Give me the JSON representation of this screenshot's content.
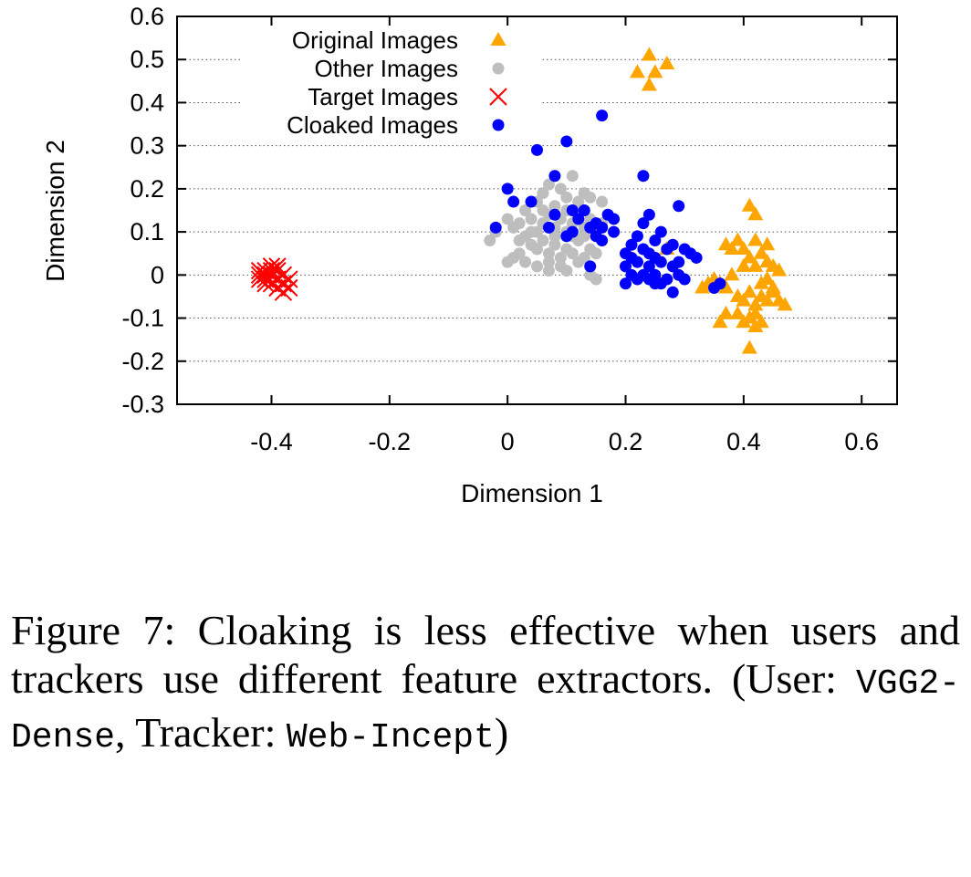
{
  "chart_data": {
    "type": "scatter",
    "xlabel": "Dimension 1",
    "ylabel": "Dimension 2",
    "xlim": [
      -0.56,
      0.66
    ],
    "ylim": [
      -0.3,
      0.6
    ],
    "x_ticks": [
      "-0.4",
      "-0.2",
      "0",
      "0.2",
      "0.4",
      "0.6"
    ],
    "x_tick_values": [
      -0.4,
      -0.2,
      0,
      0.2,
      0.4,
      0.6
    ],
    "y_ticks": [
      "0.6",
      "0.5",
      "0.4",
      "0.3",
      "0.2",
      "0.1",
      "0",
      "-0.1",
      "-0.2",
      "-0.3"
    ],
    "y_tick_values": [
      0.6,
      0.5,
      0.4,
      0.3,
      0.2,
      0.1,
      0,
      -0.1,
      -0.2,
      -0.3
    ],
    "grid": "horizontal dotted",
    "legend_position": "top-left",
    "series": [
      {
        "name": "Original Images",
        "marker": "triangle",
        "color": "#FFA500",
        "points": [
          [
            0.22,
            0.47
          ],
          [
            0.24,
            0.51
          ],
          [
            0.25,
            0.47
          ],
          [
            0.27,
            0.49
          ],
          [
            0.24,
            0.44
          ],
          [
            0.41,
            0.16
          ],
          [
            0.42,
            0.14
          ],
          [
            0.37,
            0.07
          ],
          [
            0.38,
            0.06
          ],
          [
            0.39,
            0.08
          ],
          [
            0.4,
            0.06
          ],
          [
            0.41,
            0.04
          ],
          [
            0.42,
            0.08
          ],
          [
            0.43,
            0.05
          ],
          [
            0.44,
            0.07
          ],
          [
            0.42,
            0.02
          ],
          [
            0.4,
            0.02
          ],
          [
            0.44,
            0.03
          ],
          [
            0.45,
            0.02
          ],
          [
            0.46,
            0.01
          ],
          [
            0.34,
            -0.02
          ],
          [
            0.33,
            -0.03
          ],
          [
            0.35,
            -0.01
          ],
          [
            0.37,
            -0.03
          ],
          [
            0.39,
            -0.05
          ],
          [
            0.4,
            -0.06
          ],
          [
            0.41,
            -0.04
          ],
          [
            0.42,
            -0.07
          ],
          [
            0.43,
            -0.05
          ],
          [
            0.44,
            -0.06
          ],
          [
            0.45,
            -0.04
          ],
          [
            0.46,
            -0.06
          ],
          [
            0.47,
            -0.07
          ],
          [
            0.42,
            -0.09
          ],
          [
            0.43,
            -0.11
          ],
          [
            0.41,
            -0.1
          ],
          [
            0.39,
            -0.09
          ],
          [
            0.36,
            -0.11
          ],
          [
            0.37,
            -0.09
          ],
          [
            0.44,
            -0.01
          ],
          [
            0.43,
            -0.02
          ],
          [
            0.45,
            -0.03
          ],
          [
            0.41,
            -0.17
          ],
          [
            0.42,
            -0.12
          ],
          [
            0.4,
            -0.11
          ],
          [
            0.27,
            0.06
          ],
          [
            0.38,
            0.0
          ],
          [
            0.36,
            -0.02
          ]
        ]
      },
      {
        "name": "Other Images",
        "marker": "circle",
        "color": "#BEBEBE",
        "points": [
          [
            0.0,
            0.13
          ],
          [
            -0.02,
            0.1
          ],
          [
            -0.03,
            0.08
          ],
          [
            0.01,
            0.11
          ],
          [
            0.02,
            0.12
          ],
          [
            0.03,
            0.09
          ],
          [
            0.04,
            0.13
          ],
          [
            0.05,
            0.1
          ],
          [
            0.06,
            0.12
          ],
          [
            0.07,
            0.14
          ],
          [
            0.08,
            0.11
          ],
          [
            0.09,
            0.13
          ],
          [
            0.1,
            0.15
          ],
          [
            0.11,
            0.12
          ],
          [
            0.12,
            0.14
          ],
          [
            0.13,
            0.11
          ],
          [
            0.14,
            0.13
          ],
          [
            0.15,
            0.1
          ],
          [
            0.16,
            0.12
          ],
          [
            0.11,
            0.23
          ],
          [
            0.1,
            0.18
          ],
          [
            0.08,
            0.16
          ],
          [
            0.12,
            0.17
          ],
          [
            0.13,
            0.19
          ],
          [
            0.14,
            0.18
          ],
          [
            0.06,
            0.19
          ],
          [
            0.05,
            0.17
          ],
          [
            0.07,
            0.21
          ],
          [
            0.09,
            0.2
          ],
          [
            0.04,
            0.07
          ],
          [
            0.05,
            0.06
          ],
          [
            0.06,
            0.08
          ],
          [
            0.07,
            0.05
          ],
          [
            0.08,
            0.07
          ],
          [
            0.09,
            0.04
          ],
          [
            0.1,
            0.06
          ],
          [
            0.11,
            0.05
          ],
          [
            0.12,
            0.03
          ],
          [
            0.13,
            0.04
          ],
          [
            0.14,
            0.06
          ],
          [
            0.15,
            0.05
          ],
          [
            0.02,
            0.05
          ],
          [
            0.01,
            0.04
          ],
          [
            0.03,
            0.03
          ],
          [
            0.0,
            0.03
          ],
          [
            0.05,
            0.02
          ],
          [
            0.07,
            0.03
          ],
          [
            0.09,
            0.02
          ],
          [
            0.11,
            0.09
          ],
          [
            0.12,
            0.08
          ],
          [
            0.13,
            0.09
          ],
          [
            0.04,
            0.1
          ],
          [
            0.02,
            0.08
          ],
          [
            0.14,
            0.0
          ],
          [
            0.15,
            -0.01
          ],
          [
            0.07,
            0.01
          ],
          [
            0.1,
            0.01
          ],
          [
            0.06,
            0.15
          ],
          [
            0.16,
            0.17
          ],
          [
            0.03,
            0.15
          ],
          [
            0.08,
            0.09
          ],
          [
            0.1,
            0.1
          ]
        ]
      },
      {
        "name": "Target Images",
        "marker": "x",
        "color": "#FF0000",
        "points": [
          [
            -0.42,
            0.0
          ],
          [
            -0.41,
            0.01
          ],
          [
            -0.4,
            0.0
          ],
          [
            -0.41,
            -0.01
          ],
          [
            -0.39,
            0.01
          ],
          [
            -0.4,
            -0.02
          ],
          [
            -0.38,
            0.0
          ],
          [
            -0.39,
            -0.01
          ],
          [
            -0.42,
            0.01
          ],
          [
            -0.4,
            0.02
          ],
          [
            -0.38,
            -0.02
          ],
          [
            -0.39,
            -0.03
          ],
          [
            -0.41,
            0.0
          ],
          [
            -0.37,
            -0.01
          ],
          [
            -0.4,
            0.01
          ],
          [
            -0.38,
            -0.04
          ],
          [
            -0.39,
            0.02
          ],
          [
            -0.37,
            -0.03
          ],
          [
            -0.41,
            -0.02
          ],
          [
            -0.42,
            -0.01
          ]
        ]
      },
      {
        "name": "Cloaked Images",
        "marker": "circle",
        "color": "#0000FF",
        "points": [
          [
            0.16,
            0.37
          ],
          [
            0.05,
            0.29
          ],
          [
            0.1,
            0.31
          ],
          [
            0.08,
            0.23
          ],
          [
            0.23,
            0.23
          ],
          [
            0.0,
            0.2
          ],
          [
            0.01,
            0.17
          ],
          [
            0.04,
            0.17
          ],
          [
            0.29,
            0.16
          ],
          [
            0.11,
            0.15
          ],
          [
            0.13,
            0.15
          ],
          [
            0.08,
            0.14
          ],
          [
            0.12,
            0.13
          ],
          [
            0.17,
            0.14
          ],
          [
            0.18,
            0.13
          ],
          [
            0.15,
            0.12
          ],
          [
            0.16,
            0.11
          ],
          [
            0.14,
            0.11
          ],
          [
            0.18,
            0.1
          ],
          [
            0.11,
            0.1
          ],
          [
            0.07,
            0.11
          ],
          [
            -0.02,
            0.11
          ],
          [
            0.1,
            0.09
          ],
          [
            0.15,
            0.09
          ],
          [
            0.16,
            0.08
          ],
          [
            0.24,
            0.14
          ],
          [
            0.23,
            0.12
          ],
          [
            0.26,
            0.1
          ],
          [
            0.22,
            0.09
          ],
          [
            0.25,
            0.08
          ],
          [
            0.21,
            0.07
          ],
          [
            0.23,
            0.06
          ],
          [
            0.2,
            0.05
          ],
          [
            0.24,
            0.05
          ],
          [
            0.27,
            0.06
          ],
          [
            0.28,
            0.07
          ],
          [
            0.3,
            0.06
          ],
          [
            0.21,
            0.04
          ],
          [
            0.25,
            0.04
          ],
          [
            0.22,
            0.03
          ],
          [
            0.26,
            0.03
          ],
          [
            0.2,
            0.02
          ],
          [
            0.24,
            0.02
          ],
          [
            0.28,
            0.02
          ],
          [
            0.29,
            0.03
          ],
          [
            0.31,
            0.05
          ],
          [
            0.32,
            0.04
          ],
          [
            0.21,
            0.0
          ],
          [
            0.23,
            0.0
          ],
          [
            0.25,
            0.0
          ],
          [
            0.27,
            -0.01
          ],
          [
            0.29,
            0.0
          ],
          [
            0.3,
            -0.01
          ],
          [
            0.26,
            -0.02
          ],
          [
            0.24,
            -0.01
          ],
          [
            0.22,
            -0.01
          ],
          [
            0.2,
            -0.02
          ],
          [
            0.28,
            -0.04
          ],
          [
            0.36,
            -0.02
          ],
          [
            0.35,
            -0.03
          ],
          [
            0.14,
            0.02
          ],
          [
            0.25,
            -0.02
          ]
        ]
      }
    ]
  },
  "caption": {
    "text": "Figure 7: Cloaking is less effective when users and trackers use different feature extractors. (User: ",
    "user_model": "VGG2-Dense",
    "mid": ", Tracker: ",
    "tracker_model": "Web-Incept",
    "end": ")"
  }
}
